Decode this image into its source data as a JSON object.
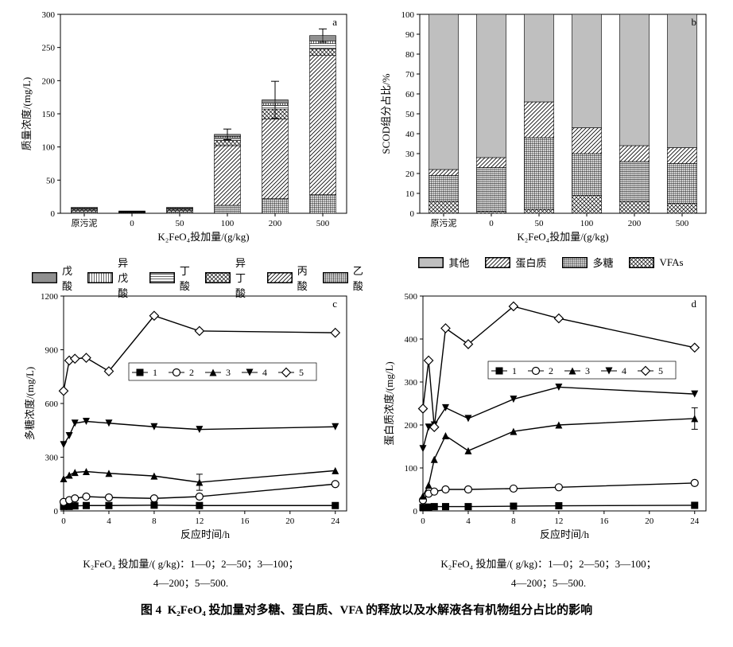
{
  "figure_label": "图 4",
  "figure_title": "K₂FeO₄ 投加量对多糖、蛋白质、VFA 的释放以及水解液各有机物组分占比的影响",
  "colors": {
    "bg": "#ffffff",
    "ink": "#000000",
    "grey": "#bfbfbf",
    "grid": "#000000"
  },
  "patterns": {
    "valeric": "grid_dense",
    "isovaleric": "vert",
    "butyric": "horiz",
    "isobutyric": "crosshatch",
    "propionic": "diag",
    "acetic": "grid",
    "other": "solid_grey",
    "protein": "diag",
    "poly": "grid",
    "vfas": "crosshatch"
  },
  "font": {
    "tick": 11,
    "axis": 13,
    "legend": 12,
    "tag": 13
  },
  "panel_a": {
    "tag": "a",
    "type": "stacked_bar_with_error",
    "xlabel": "K₂FeO₄投加量/(g/kg)",
    "ylabel": "质量浓度/(mg/L)",
    "ylim": [
      0,
      300
    ],
    "ytick_step": 50,
    "categories": [
      "原污泥",
      "0",
      "50",
      "100",
      "200",
      "500"
    ],
    "series": [
      {
        "name": "戊酸",
        "key": "valeric"
      },
      {
        "name": "异戊酸",
        "key": "isovaleric"
      },
      {
        "name": "丁酸",
        "key": "butyric"
      },
      {
        "name": "异丁酸",
        "key": "isobutyric"
      },
      {
        "name": "丙酸",
        "key": "propionic"
      },
      {
        "name": "乙酸",
        "key": "acetic"
      }
    ],
    "stacks": [
      {
        "valeric": 1,
        "isovaleric": 1,
        "butyric": 1,
        "isobutyric": 2,
        "propionic": 2,
        "acetic": 2
      },
      {
        "valeric": 0.5,
        "isovaleric": 0.5,
        "butyric": 0.5,
        "isobutyric": 0.5,
        "propionic": 0.5,
        "acetic": 1
      },
      {
        "valeric": 1,
        "isovaleric": 1,
        "butyric": 1,
        "isobutyric": 2,
        "propionic": 2,
        "acetic": 2
      },
      {
        "valeric": 3,
        "isovaleric": 2,
        "butyric": 4,
        "isobutyric": 8,
        "propionic": 90,
        "acetic": 12
      },
      {
        "valeric": 5,
        "isovaleric": 3,
        "butyric": 6,
        "isobutyric": 15,
        "propionic": 120,
        "acetic": 22
      },
      {
        "valeric": 8,
        "isovaleric": 4,
        "butyric": 8,
        "isobutyric": 10,
        "propionic": 210,
        "acetic": 28
      }
    ],
    "errors": [
      0,
      0,
      0,
      8,
      28,
      10
    ],
    "bar_width": 0.55
  },
  "panel_b": {
    "tag": "b",
    "type": "stacked_bar_percent",
    "xlabel": "K₂FeO₄投加量/(g/kg)",
    "ylabel": "SCOD组分占比/%",
    "ylim": [
      0,
      100
    ],
    "ytick_step": 10,
    "categories": [
      "原污泥",
      "0",
      "50",
      "100",
      "200",
      "500"
    ],
    "series": [
      {
        "name": "其他",
        "key": "other"
      },
      {
        "name": "蛋白质",
        "key": "protein"
      },
      {
        "name": "多糖",
        "key": "poly"
      },
      {
        "name": "VFAs",
        "key": "vfas"
      }
    ],
    "stacks": [
      {
        "vfas": 6,
        "poly": 13,
        "protein": 3,
        "other": 78
      },
      {
        "vfas": 1,
        "poly": 22,
        "protein": 5,
        "other": 72
      },
      {
        "vfas": 2,
        "poly": 36,
        "protein": 18,
        "other": 44
      },
      {
        "vfas": 9,
        "poly": 21,
        "protein": 13,
        "other": 57
      },
      {
        "vfas": 6,
        "poly": 20,
        "protein": 8,
        "other": 66
      },
      {
        "vfas": 5,
        "poly": 20,
        "protein": 8,
        "other": 67
      }
    ],
    "bar_width": 0.62
  },
  "line_defs": {
    "series": [
      {
        "id": 1,
        "label": "1",
        "marker": "square_filled"
      },
      {
        "id": 2,
        "label": "2",
        "marker": "circle_open"
      },
      {
        "id": 3,
        "label": "3",
        "marker": "triangle_up_filled"
      },
      {
        "id": 4,
        "label": "4",
        "marker": "triangle_down_filled"
      },
      {
        "id": 5,
        "label": "5",
        "marker": "diamond_open"
      }
    ],
    "x": [
      0,
      0.5,
      1,
      2,
      4,
      8,
      12,
      24
    ],
    "xlabel": "反应时间/h",
    "xlim": [
      0,
      25
    ],
    "xtick_step": 4,
    "dose_note1": "K₂FeO₄ 投加量/( g/kg)：1—0；2—50；3—100；",
    "dose_note2": "4—200；5—500."
  },
  "panel_c": {
    "tag": "c",
    "type": "line",
    "ylabel": "多糖浓度/(mg/L)",
    "ylim": [
      0,
      1200
    ],
    "ytick_step": 300,
    "data": {
      "1": [
        25,
        25,
        28,
        30,
        30,
        32,
        30,
        30
      ],
      "2": [
        50,
        60,
        70,
        80,
        75,
        70,
        80,
        150
      ],
      "3": [
        180,
        200,
        215,
        220,
        210,
        195,
        160,
        225
      ],
      "4": [
        370,
        420,
        490,
        500,
        490,
        470,
        455,
        470
      ],
      "5": [
        670,
        840,
        850,
        855,
        780,
        1090,
        1005,
        995
      ]
    },
    "err": {
      "series": "3",
      "x": 12,
      "e": 45
    }
  },
  "panel_d": {
    "tag": "d",
    "type": "line",
    "ylabel": "蛋白质浓度/(mg/L)",
    "ylim": [
      0,
      500
    ],
    "ytick_step": 100,
    "data": {
      "1": [
        8,
        9,
        10,
        10,
        10,
        11,
        12,
        13
      ],
      "2": [
        25,
        40,
        45,
        50,
        50,
        52,
        55,
        65
      ],
      "3": [
        35,
        60,
        120,
        175,
        140,
        185,
        200,
        215
      ],
      "4": [
        145,
        195,
        200,
        240,
        215,
        260,
        288,
        272
      ],
      "5": [
        238,
        350,
        195,
        425,
        388,
        476,
        448,
        380
      ]
    },
    "err": {
      "series": "3",
      "x": 24,
      "e": 25
    }
  }
}
